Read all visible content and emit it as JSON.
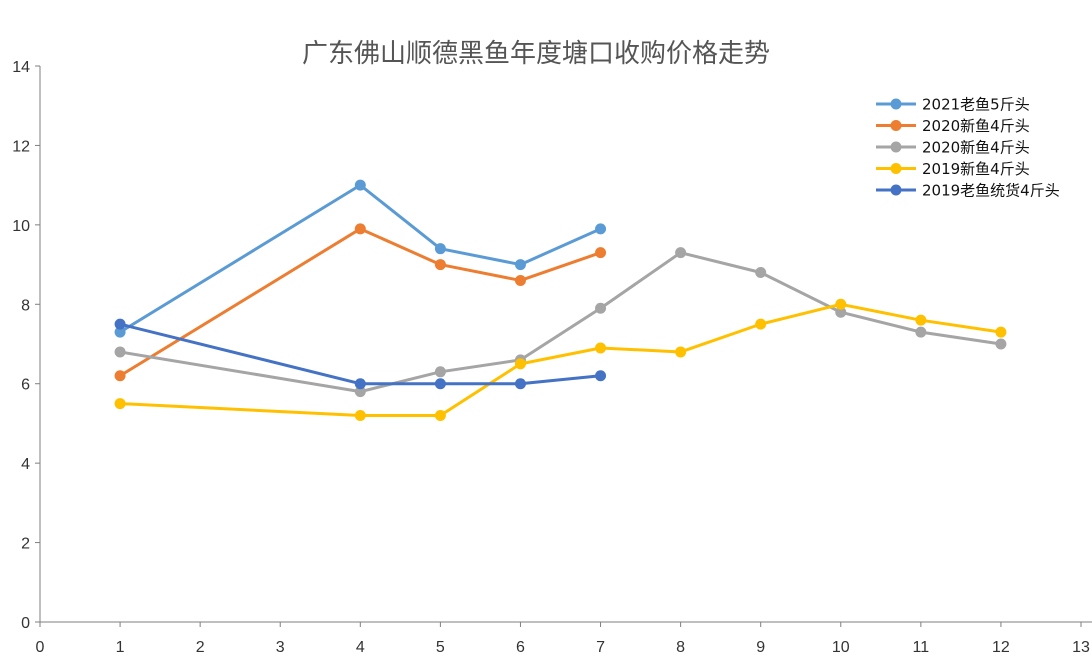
{
  "chart_data": {
    "type": "line",
    "title": "广东佛山顺德黑鱼年度塘口收购价格走势",
    "xlabel": "",
    "ylabel": "",
    "xlim": [
      0,
      13
    ],
    "ylim": [
      0,
      14
    ],
    "x_ticks": [
      "0",
      "1",
      "2",
      "3",
      "4",
      "5",
      "6",
      "7",
      "8",
      "9",
      "10",
      "11",
      "12",
      "13"
    ],
    "y_ticks": [
      "0",
      "2",
      "4",
      "6",
      "8",
      "10",
      "12",
      "14"
    ],
    "grid": false,
    "legend_position": "top-right",
    "series": [
      {
        "name": "2021老鱼5斤头",
        "color": "#5b9bd5",
        "points": [
          [
            1,
            7.3
          ],
          [
            4,
            11.0
          ],
          [
            5,
            9.4
          ],
          [
            6,
            9.0
          ],
          [
            7,
            9.9
          ]
        ]
      },
      {
        "name": "2020新鱼4斤头",
        "color": "#ed7d31",
        "points": [
          [
            1,
            6.2
          ],
          [
            4,
            9.9
          ],
          [
            5,
            9.0
          ],
          [
            6,
            8.6
          ],
          [
            7,
            9.3
          ]
        ]
      },
      {
        "name": "2020新鱼4斤头",
        "color": "#a5a5a5",
        "points": [
          [
            1,
            6.8
          ],
          [
            4,
            5.8
          ],
          [
            5,
            6.3
          ],
          [
            6,
            6.6
          ],
          [
            7,
            7.9
          ],
          [
            8,
            9.3
          ],
          [
            9,
            8.8
          ],
          [
            10,
            7.8
          ],
          [
            11,
            7.3
          ],
          [
            12,
            7.0
          ]
        ]
      },
      {
        "name": "2019新鱼4斤头",
        "color": "#ffc000",
        "points": [
          [
            1,
            5.5
          ],
          [
            4,
            5.2
          ],
          [
            5,
            5.2
          ],
          [
            6,
            6.5
          ],
          [
            7,
            6.9
          ],
          [
            8,
            6.8
          ],
          [
            9,
            7.5
          ],
          [
            10,
            8.0
          ],
          [
            11,
            7.6
          ],
          [
            12,
            7.3
          ]
        ]
      },
      {
        "name": "2019老鱼统货4斤头",
        "color": "#4472c4",
        "points": [
          [
            1,
            7.5
          ],
          [
            4,
            6.0
          ],
          [
            5,
            6.0
          ],
          [
            6,
            6.0
          ],
          [
            7,
            6.2
          ]
        ]
      }
    ]
  }
}
